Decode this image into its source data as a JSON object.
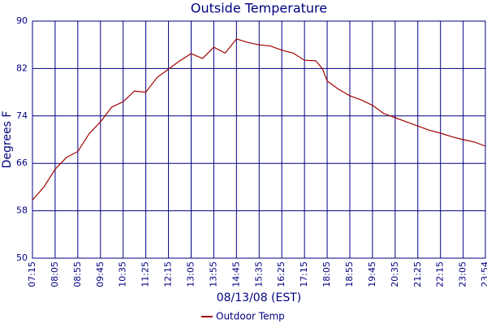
{
  "chart_data": {
    "type": "line",
    "title": "Outside Temperature",
    "x_label": "08/13/08 (EST)",
    "y_label": "Degrees F",
    "x": [
      "07:15",
      "07:40",
      "08:05",
      "08:30",
      "08:55",
      "09:20",
      "09:45",
      "10:10",
      "10:35",
      "11:00",
      "11:25",
      "11:50",
      "12:15",
      "12:40",
      "13:05",
      "13:30",
      "13:55",
      "14:20",
      "14:45",
      "15:10",
      "15:35",
      "16:00",
      "16:25",
      "16:50",
      "17:15",
      "17:40",
      "17:55",
      "18:05",
      "18:30",
      "18:55",
      "19:20",
      "19:45",
      "20:10",
      "20:35",
      "21:00",
      "21:25",
      "21:50",
      "22:15",
      "22:40",
      "23:05",
      "23:30",
      "23:54"
    ],
    "series": [
      {
        "name": "Outdoor Temp",
        "color": "#a00000",
        "values": [
          59.8,
          62,
          65,
          67,
          68,
          71,
          73,
          75.5,
          76.4,
          78.2,
          78,
          80.5,
          81.9,
          83.3,
          84.5,
          83.7,
          85.6,
          84.6,
          87,
          86.4,
          86,
          85.8,
          85.1,
          84.6,
          83.4,
          83.3,
          81.9,
          79.9,
          78.5,
          77.4,
          76.7,
          75.8,
          74.4,
          73.7,
          73,
          72.3,
          71.6,
          71.1,
          70.5,
          70,
          69.6,
          68.9
        ]
      }
    ],
    "xlim": [
      "07:15",
      "23:54"
    ],
    "xticks": [
      "07:15",
      "08:05",
      "08:55",
      "09:45",
      "10:35",
      "11:25",
      "12:15",
      "13:05",
      "13:55",
      "14:45",
      "15:35",
      "16:25",
      "17:15",
      "18:05",
      "18:55",
      "19:45",
      "20:35",
      "21:25",
      "22:15",
      "23:05",
      "23:54"
    ],
    "ylim": [
      50,
      90
    ],
    "yticks": [
      50,
      58,
      66,
      74,
      82,
      90
    ],
    "grid": true,
    "legend": "bottom"
  }
}
